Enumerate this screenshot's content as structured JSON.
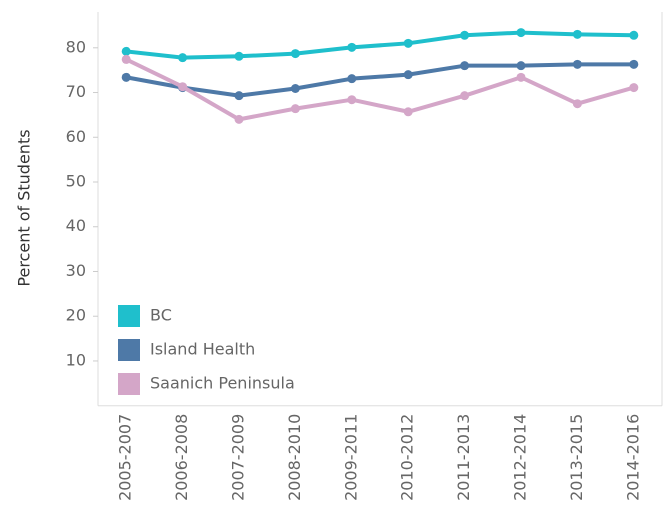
{
  "chart_data": {
    "type": "line",
    "y_label": "Percent of Students",
    "categories": [
      "2005-2007",
      "2006-2008",
      "2007-2009",
      "2008-2010",
      "2009-2011",
      "2010-2012",
      "2011-2013",
      "2012-2014",
      "2013-2015",
      "2014-2016"
    ],
    "series": [
      {
        "name": "BC",
        "color": "#1fbfcc",
        "values": [
          79.2,
          77.8,
          78.1,
          78.7,
          80.1,
          81.0,
          82.8,
          83.4,
          83.0,
          82.8
        ]
      },
      {
        "name": "Island Health",
        "color": "#4e79a7",
        "values": [
          73.4,
          71.1,
          69.3,
          70.9,
          73.1,
          74.0,
          76.0,
          76.0,
          76.3,
          76.3
        ]
      },
      {
        "name": "Saanich Peninsula",
        "color": "#d4a6c8",
        "values": [
          77.4,
          71.3,
          64.0,
          66.4,
          68.4,
          65.7,
          69.3,
          73.4,
          67.5,
          71.1
        ]
      }
    ],
    "ylim": [
      0,
      88
    ],
    "yticks": [
      10,
      20,
      30,
      40,
      50,
      60,
      70,
      80
    ],
    "grid": false,
    "legend": "bottom-left"
  }
}
